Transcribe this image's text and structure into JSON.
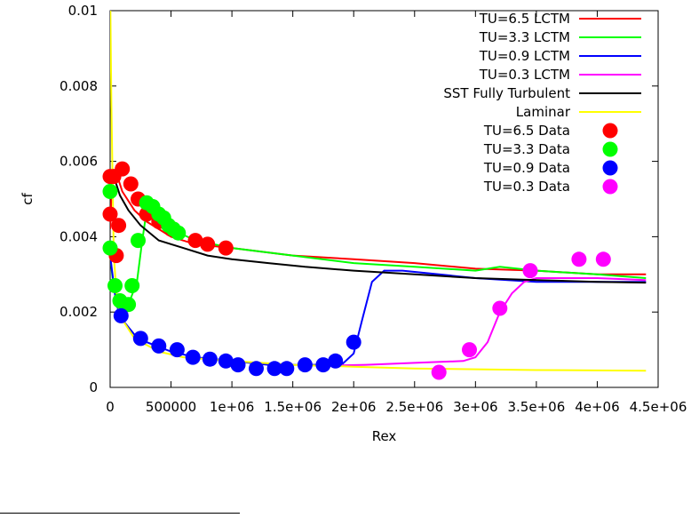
{
  "chart_data": {
    "type": "line",
    "title": "",
    "xlabel": "Rex",
    "ylabel": "cf",
    "xlim": [
      0,
      4500000
    ],
    "ylim": [
      0,
      0.01
    ],
    "x_ticks": [
      0,
      500000,
      1000000,
      1500000,
      2000000,
      2500000,
      3000000,
      3500000,
      4000000,
      4500000
    ],
    "x_tick_labels": [
      "0",
      "500000",
      "1e+06",
      "1.5e+06",
      "2e+06",
      "2.5e+06",
      "3e+06",
      "3.5e+06",
      "4e+06",
      "4.5e+06"
    ],
    "y_ticks": [
      0,
      0.002,
      0.004,
      0.006,
      0.008,
      0.01
    ],
    "y_tick_labels": [
      "0",
      "0.002",
      "0.004",
      "0.006",
      "0.008",
      "0.01"
    ],
    "grid": false,
    "legend_position": "top-right",
    "lines": [
      {
        "name": "TU=6.5 LCTM",
        "color": "#ff0000",
        "x": [
          0,
          20000,
          60000,
          100000,
          200000,
          300000,
          400000,
          500000,
          700000,
          1000000,
          1500000,
          2000000,
          2500000,
          3000000,
          3500000,
          4000000,
          4400000
        ],
        "y": [
          0.0042,
          0.0058,
          0.0056,
          0.0052,
          0.0047,
          0.0044,
          0.0042,
          0.004,
          0.0038,
          0.0037,
          0.0035,
          0.0034,
          0.0033,
          0.00315,
          0.0031,
          0.003,
          0.003
        ]
      },
      {
        "name": "TU=3.3 LCTM",
        "color": "#00ff00",
        "x": [
          0,
          30000,
          100000,
          150000,
          220000,
          260000,
          300000,
          400000,
          500000,
          700000,
          1000000,
          1500000,
          2000000,
          2500000,
          3000000,
          3200000,
          3500000,
          4000000,
          4400000
        ],
        "y": [
          0.0035,
          0.0026,
          0.0021,
          0.0022,
          0.0028,
          0.0038,
          0.0047,
          0.0045,
          0.0042,
          0.0039,
          0.0037,
          0.0035,
          0.0033,
          0.0032,
          0.0031,
          0.0032,
          0.0031,
          0.003,
          0.0029
        ]
      },
      {
        "name": "TU=0.9 LCTM",
        "color": "#0000ff",
        "x": [
          0,
          50000,
          100000,
          200000,
          300000,
          500000,
          700000,
          1000000,
          1300000,
          1600000,
          1900000,
          2000000,
          2070000,
          2150000,
          2250000,
          2400000,
          2700000,
          3000000,
          3500000,
          4000000,
          4400000
        ],
        "y": [
          0.0035,
          0.0022,
          0.0018,
          0.0014,
          0.0012,
          0.00095,
          0.0008,
          0.0007,
          0.0006,
          0.0006,
          0.0006,
          0.0009,
          0.0018,
          0.0028,
          0.0031,
          0.0031,
          0.003,
          0.0029,
          0.0028,
          0.0028,
          0.0028
        ]
      },
      {
        "name": "TU=0.3 LCTM",
        "color": "#ff00ff",
        "x": [
          1800000,
          2100000,
          2500000,
          2900000,
          3000000,
          3100000,
          3200000,
          3300000,
          3400000,
          3500000,
          4000000,
          4400000
        ],
        "y": [
          0.00058,
          0.0006,
          0.00065,
          0.0007,
          0.0008,
          0.0012,
          0.002,
          0.0025,
          0.0028,
          0.0029,
          0.0029,
          0.00285
        ]
      },
      {
        "name": "SST Fully Turbulent",
        "color": "#000000",
        "x": [
          5000,
          30000,
          80000,
          150000,
          250000,
          400000,
          600000,
          800000,
          1000000,
          1300000,
          1600000,
          2000000,
          2500000,
          3000000,
          3500000,
          4000000,
          4400000
        ],
        "y": [
          0.0057,
          0.0056,
          0.0051,
          0.0047,
          0.0043,
          0.0039,
          0.0037,
          0.0035,
          0.0034,
          0.0033,
          0.0032,
          0.0031,
          0.003,
          0.0029,
          0.00285,
          0.0028,
          0.00278
        ]
      },
      {
        "name": "Laminar",
        "color": "#ffff00",
        "x": [
          2000,
          10000,
          30000,
          60000,
          100000,
          200000,
          400000,
          600000,
          1000000,
          1500000,
          2000000,
          2500000,
          3000000,
          3500000,
          4000000,
          4400000
        ],
        "y": [
          0.01,
          0.0075,
          0.0035,
          0.0022,
          0.0018,
          0.0013,
          0.00095,
          0.0008,
          0.0007,
          0.0006,
          0.00055,
          0.0005,
          0.00048,
          0.00046,
          0.00045,
          0.00044
        ]
      }
    ],
    "scatter": [
      {
        "name": "TU=6.5 Data",
        "color": "#ff0000",
        "points": [
          [
            0,
            0.0056
          ],
          [
            30000,
            0.0056
          ],
          [
            100000,
            0.0058
          ],
          [
            0,
            0.0046
          ],
          [
            70000,
            0.0043
          ],
          [
            170000,
            0.0054
          ],
          [
            230000,
            0.005
          ],
          [
            300000,
            0.0046
          ],
          [
            400000,
            0.0044
          ],
          [
            500000,
            0.0042
          ],
          [
            700000,
            0.0039
          ],
          [
            800000,
            0.0038
          ],
          [
            950000,
            0.0037
          ],
          [
            50000,
            0.0035
          ]
        ]
      },
      {
        "name": "TU=3.3 Data",
        "color": "#00ff00",
        "points": [
          [
            0,
            0.0052
          ],
          [
            0,
            0.0037
          ],
          [
            40000,
            0.0027
          ],
          [
            80000,
            0.0023
          ],
          [
            150000,
            0.0022
          ],
          [
            180000,
            0.0027
          ],
          [
            230000,
            0.0039
          ],
          [
            300000,
            0.0049
          ],
          [
            350000,
            0.0048
          ],
          [
            400000,
            0.0046
          ],
          [
            440000,
            0.0045
          ],
          [
            480000,
            0.0043
          ],
          [
            520000,
            0.0042
          ],
          [
            560000,
            0.0041
          ]
        ]
      },
      {
        "name": "TU=0.9 Data",
        "color": "#0000ff",
        "points": [
          [
            90000,
            0.0019
          ],
          [
            250000,
            0.0013
          ],
          [
            400000,
            0.0011
          ],
          [
            550000,
            0.001
          ],
          [
            680000,
            0.0008
          ],
          [
            820000,
            0.00075
          ],
          [
            950000,
            0.0007
          ],
          [
            1050000,
            0.0006
          ],
          [
            1200000,
            0.0005
          ],
          [
            1350000,
            0.0005
          ],
          [
            1450000,
            0.0005
          ],
          [
            1600000,
            0.0006
          ],
          [
            1750000,
            0.0006
          ],
          [
            1850000,
            0.0007
          ],
          [
            2000000,
            0.0012
          ]
        ]
      },
      {
        "name": "TU=0.3 Data",
        "color": "#ff00ff",
        "points": [
          [
            2700000,
            0.0004
          ],
          [
            2950000,
            0.001
          ],
          [
            3200000,
            0.0021
          ],
          [
            3450000,
            0.0031
          ],
          [
            3850000,
            0.0034
          ],
          [
            4050000,
            0.0034
          ]
        ]
      }
    ]
  }
}
